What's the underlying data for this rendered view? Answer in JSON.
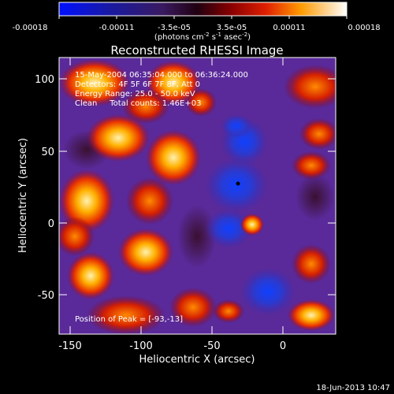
{
  "colorbar": {
    "tick_labels": [
      "-0.00018",
      "-0.00011",
      "-3.5e-05",
      "3.5e-05",
      "0.00011",
      "0.00018"
    ],
    "unit_label": "(photons cm",
    "unit_exp1": "-2",
    "unit_mid": " s",
    "unit_exp2": "-1",
    "unit_mid2": " asec",
    "unit_exp3": "-2",
    "unit_end": ")"
  },
  "title": "Reconstructed RHESSI Image",
  "annotations": {
    "line1": "15-May-2004 06:35:04.000 to 06:36:24.000",
    "line2": "Detectors: 4F 5F 6F 7F 8F, Att 0",
    "line3": "Energy Range: 25.0 - 50.0 keV",
    "line4": "Clean     Total counts: 1.46E+03",
    "peak": "Position of Peak = [-93,-13]"
  },
  "axes": {
    "xlabel": "Heliocentric X (arcsec)",
    "ylabel": "Heliocentric Y (arcsec)",
    "xticks": [
      "-150",
      "-100",
      "-50",
      "0"
    ],
    "yticks": [
      "100",
      "50",
      "0",
      "-50"
    ]
  },
  "footer_timestamp": "18-Jun-2013 10:47"
}
